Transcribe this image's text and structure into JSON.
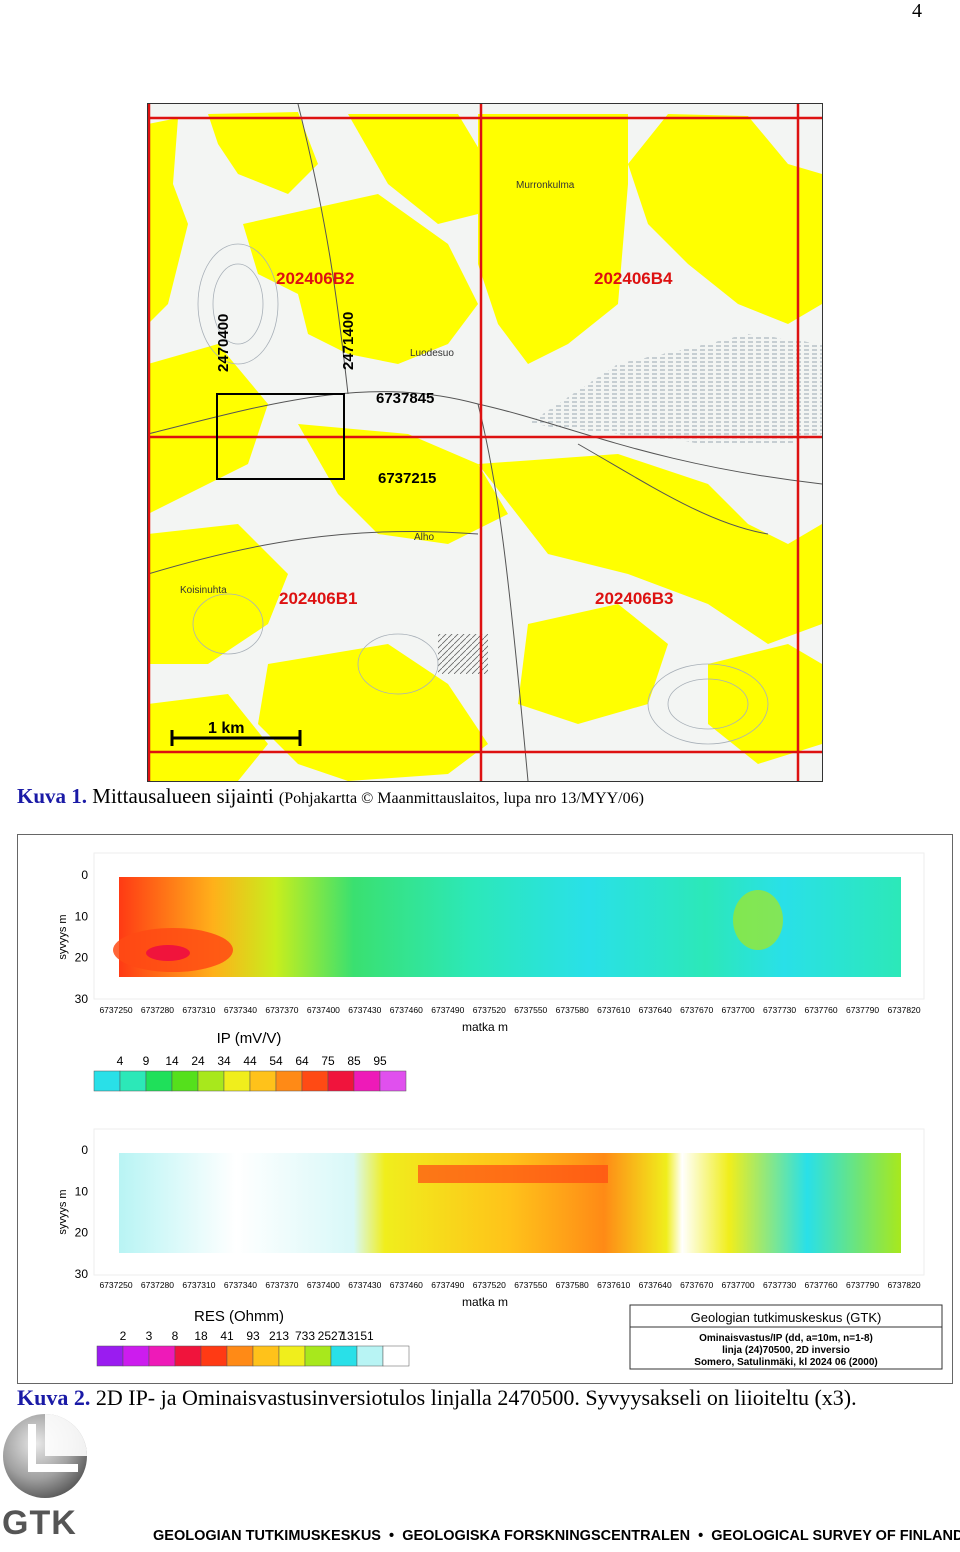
{
  "page_number": "4",
  "figure1": {
    "label": "Kuva 1.",
    "text": "Mittausalueen sijainti",
    "credit": "(Pohjakartta © Maanmittauslaitos, lupa nro 13/MYY/06)",
    "map": {
      "sheets": [
        "202406B2",
        "202406B4",
        "202406B1",
        "202406B3"
      ],
      "coordinates": [
        "2470400",
        "2471400",
        "6737845",
        "6737215"
      ],
      "scale_label": "1 km",
      "place_names": [
        "Murronkulma",
        "Luodesuo",
        "Alho",
        "Koisinuhta"
      ],
      "colors": {
        "fill": "#ffff00",
        "grid": "#dd1111",
        "background": "#f3f5f3"
      }
    }
  },
  "figure2": {
    "label": "Kuva 2.",
    "text": "2D IP- ja Ominaisvastusinversiotulos linjalla 2470500. Syvyysakseli on liioiteltu (x3).",
    "y_label": "syvyys m",
    "y_ticks": [
      "0",
      "10",
      "20",
      "30"
    ],
    "x_label": "matka m",
    "x_ticks": [
      "6737250",
      "6737280",
      "6737310",
      "6737340",
      "6737370",
      "6737400",
      "6737430",
      "6737460",
      "6737490",
      "6737520",
      "6737550",
      "6737580",
      "6737610",
      "6737640",
      "6737670",
      "6737700",
      "6737730",
      "6737760",
      "6737790",
      "6737820"
    ],
    "ip_legend": {
      "title": "IP (mV/V)",
      "labels": [
        "4",
        "9",
        "14",
        "24",
        "34",
        "44",
        "54",
        "64",
        "75",
        "85",
        "95"
      ],
      "colors": [
        "#29e0e8",
        "#2ce8b8",
        "#1fe05a",
        "#55e01c",
        "#a8e81c",
        "#f0ee1c",
        "#ffc21a",
        "#ff8a16",
        "#ff4a14",
        "#f0143c",
        "#ee1ab8",
        "#e050ee"
      ]
    },
    "res_legend": {
      "title": "RES (Ohmm)",
      "labels": [
        "2",
        "3",
        "8",
        "18",
        "41",
        "93",
        "213",
        "733",
        "2527",
        "13151"
      ],
      "colors": [
        "#9a1cf0",
        "#cc1cee",
        "#ee1ab8",
        "#f0143c",
        "#ff3a14",
        "#ff8a16",
        "#ffc21a",
        "#f0ee1c",
        "#a8e81c",
        "#29e0e8",
        "#b8f4f4",
        "#ffffff"
      ]
    },
    "info_box": {
      "title": "Geologian tutkimuskeskus (GTK)",
      "lines": [
        "Ominaisvastus/IP (dd, a=10m, n=1-8)",
        "linja (24)70500, 2D inversio",
        "Somero, Satulinmäki, kl 2024 06 (2000)"
      ]
    }
  },
  "logo": {
    "text": "GTK"
  },
  "footer": {
    "parts": [
      "GEOLOGIAN TUTKIMUSKESKUS",
      "GEOLOGISKA FORSKNINGSCENTRALEN",
      "GEOLOGICAL SURVEY OF FINLAND"
    ]
  }
}
